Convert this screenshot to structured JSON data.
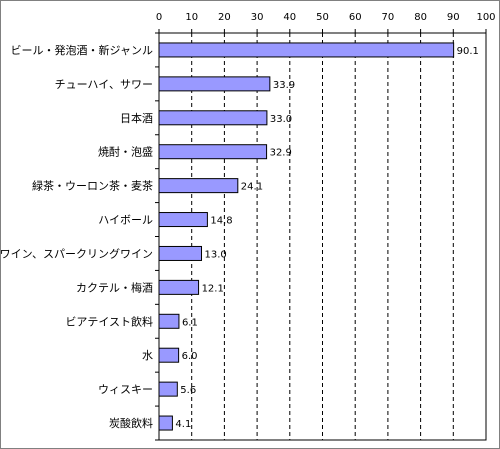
{
  "chart_data": {
    "type": "bar",
    "orientation": "horizontal",
    "title": "",
    "xlabel": "",
    "ylabel": "",
    "xlim": [
      0,
      100
    ],
    "xticks": [
      "0",
      "10",
      "20",
      "30",
      "40",
      "50",
      "60",
      "70",
      "80",
      "90",
      "100"
    ],
    "grid": "vertical dashed",
    "categories": [
      "ビール・発泡酒・新ジャンル",
      "チューハイ、サワー",
      "日本酒",
      "焼酎・泡盛",
      "緑茶・ウーロン茶・麦茶",
      "ハイボール",
      "ワイン、スパークリングワイン",
      "カクテル・梅酒",
      "ビアテイスト飲料",
      "水",
      "ウィスキー",
      "炭酸飲料"
    ],
    "values": [
      90.1,
      33.9,
      33.0,
      32.9,
      24.1,
      14.8,
      13.0,
      12.1,
      6.1,
      6.0,
      5.6,
      4.1
    ],
    "value_labels": [
      "90.1",
      "33.9",
      "33.0",
      "32.9",
      "24.1",
      "14.8",
      "13.0",
      "12.1",
      "6.1",
      "6.0",
      "5.6",
      "4.1"
    ],
    "colors": {
      "bar": "#9999ff",
      "bar_stroke": "#000000",
      "grid": "#000000"
    }
  }
}
